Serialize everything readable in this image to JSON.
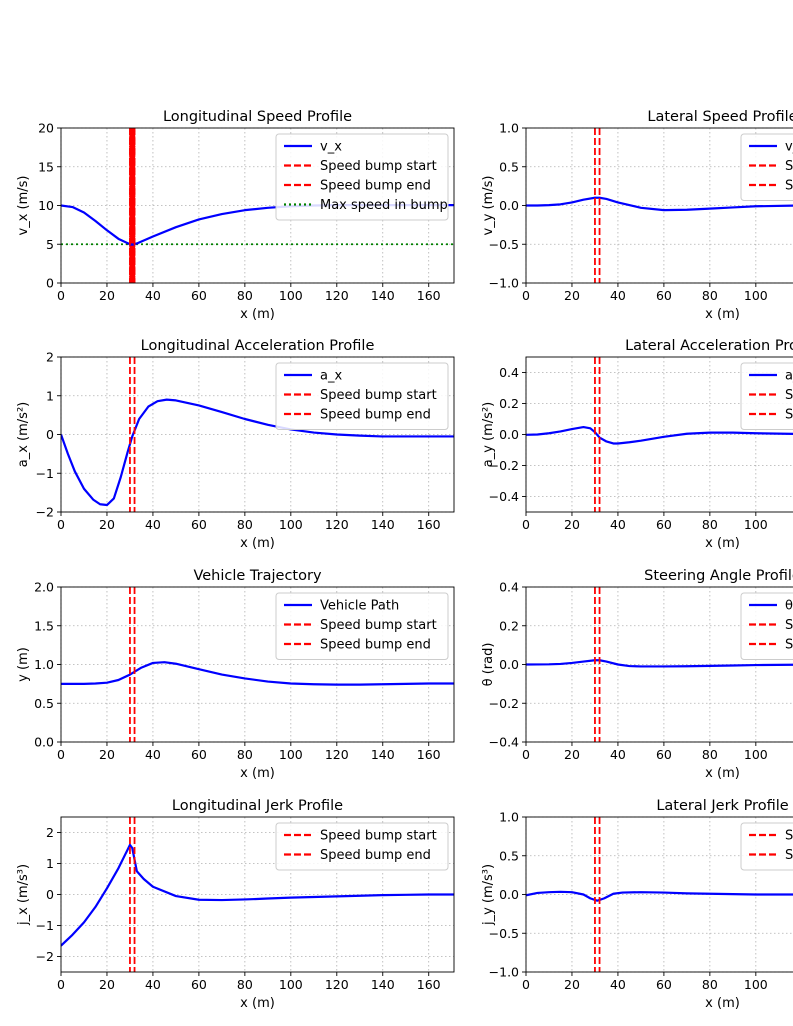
{
  "chart_data": [
    {
      "type": "line",
      "title": "Longitudinal Speed Profile",
      "xlabel": "x (m)",
      "ylabel": "v_x (m/s)",
      "xlim": [
        0,
        171
      ],
      "ylim": [
        0,
        20
      ],
      "xticks": [
        0,
        20,
        40,
        60,
        80,
        100,
        120,
        140,
        160
      ],
      "yticks": [
        0,
        5,
        10,
        15,
        20
      ],
      "xtick_labels": [
        "0",
        "20",
        "40",
        "60",
        "80",
        "100",
        "120",
        "140",
        "160"
      ],
      "ytick_labels": [
        "0",
        "5",
        "10",
        "15",
        "20"
      ],
      "grid": true,
      "legend_position": "upper-right",
      "legend": [
        "v_x",
        "Speed bump start",
        "Speed bump end",
        "Max speed in bump"
      ],
      "series": [
        {
          "name": "v_x",
          "color": "#0000ff",
          "style": "solid",
          "x": [
            0,
            5,
            10,
            15,
            20,
            25,
            30,
            31,
            33,
            40,
            50,
            60,
            70,
            80,
            90,
            100,
            110,
            120,
            130,
            140,
            150,
            160,
            171
          ],
          "y": [
            10,
            9.8,
            9.1,
            8.0,
            6.8,
            5.7,
            5.0,
            4.95,
            5.1,
            6.0,
            7.2,
            8.2,
            8.9,
            9.4,
            9.7,
            9.9,
            10.0,
            10.05,
            10.05,
            10.05,
            10.05,
            10.05,
            10.05
          ]
        }
      ],
      "vlines": [
        {
          "name": "Speed bump start",
          "x": 30,
          "color": "#ff0000",
          "style": "dashed"
        },
        {
          "name": "Speed bump end",
          "x": 32,
          "color": "#ff0000",
          "style": "dashed"
        }
      ],
      "hlines": [
        {
          "name": "Max speed in bump",
          "y": 5,
          "color": "#008000",
          "style": "dotted"
        }
      ],
      "bump_markers": {
        "x": 31,
        "color": "#ff0000",
        "y_from": 0,
        "y_to": 20,
        "step": 0.4
      }
    },
    {
      "type": "line",
      "title": "Lateral Speed Profile",
      "xlabel": "x (m)",
      "ylabel": "v_y (m/s)",
      "xlim": [
        0,
        171
      ],
      "ylim": [
        -1.0,
        1.0
      ],
      "xticks": [
        0,
        20,
        40,
        60,
        80,
        100
      ],
      "yticks": [
        -1.0,
        -0.5,
        0.0,
        0.5,
        1.0
      ],
      "xtick_labels": [
        "0",
        "20",
        "40",
        "60",
        "80",
        "100"
      ],
      "ytick_labels": [
        "−1.0",
        "−0.5",
        "0.0",
        "0.5",
        "1.0"
      ],
      "grid": true,
      "legend_position": "upper-right",
      "legend": [
        "v_y",
        "Speed bump start",
        "Speed bump end"
      ],
      "series": [
        {
          "name": "v_y",
          "color": "#0000ff",
          "style": "solid",
          "x": [
            0,
            5,
            10,
            15,
            20,
            25,
            30,
            32,
            35,
            40,
            50,
            60,
            70,
            80,
            90,
            100,
            120,
            140,
            171
          ],
          "y": [
            0,
            0,
            0.005,
            0.015,
            0.04,
            0.075,
            0.1,
            0.1,
            0.085,
            0.04,
            -0.03,
            -0.06,
            -0.055,
            -0.04,
            -0.025,
            -0.01,
            0.0,
            0.0,
            0.0
          ]
        }
      ],
      "vlines": [
        {
          "name": "Speed bump start",
          "x": 30,
          "color": "#ff0000",
          "style": "dashed"
        },
        {
          "name": "Speed bump end",
          "x": 32,
          "color": "#ff0000",
          "style": "dashed"
        }
      ],
      "hlines": []
    },
    {
      "type": "line",
      "title": "Longitudinal Acceleration Profile",
      "xlabel": "x (m)",
      "ylabel": "a_x (m/s²)",
      "xlim": [
        0,
        171
      ],
      "ylim": [
        -2,
        2
      ],
      "xticks": [
        0,
        20,
        40,
        60,
        80,
        100,
        120,
        140,
        160
      ],
      "yticks": [
        -2,
        -1,
        0,
        1,
        2
      ],
      "xtick_labels": [
        "0",
        "20",
        "40",
        "60",
        "80",
        "100",
        "120",
        "140",
        "160"
      ],
      "ytick_labels": [
        "−2",
        "−1",
        "0",
        "1",
        "2"
      ],
      "grid": true,
      "legend_position": "upper-right",
      "legend": [
        "a_x",
        "Speed bump start",
        "Speed bump end"
      ],
      "series": [
        {
          "name": "a_x",
          "color": "#0000ff",
          "style": "solid",
          "x": [
            0,
            3,
            6,
            10,
            14,
            17,
            20,
            23,
            26,
            29,
            31,
            34,
            38,
            42,
            46,
            50,
            60,
            70,
            80,
            90,
            100,
            110,
            120,
            130,
            140,
            150,
            171
          ],
          "y": [
            0,
            -0.5,
            -0.95,
            -1.4,
            -1.68,
            -1.8,
            -1.82,
            -1.65,
            -1.1,
            -0.45,
            -0.05,
            0.4,
            0.72,
            0.86,
            0.9,
            0.88,
            0.75,
            0.58,
            0.4,
            0.25,
            0.13,
            0.05,
            0.0,
            -0.03,
            -0.05,
            -0.05,
            -0.05
          ]
        }
      ],
      "vlines": [
        {
          "name": "Speed bump start",
          "x": 30,
          "color": "#ff0000",
          "style": "dashed"
        },
        {
          "name": "Speed bump end",
          "x": 32,
          "color": "#ff0000",
          "style": "dashed"
        }
      ],
      "hlines": []
    },
    {
      "type": "line",
      "title": "Lateral Acceleration Profile",
      "xlabel": "x (m)",
      "ylabel": "a_y (m/s²)",
      "xlim": [
        0,
        171
      ],
      "ylim": [
        -0.5,
        0.5
      ],
      "xticks": [
        0,
        20,
        40,
        60,
        80,
        100
      ],
      "yticks": [
        -0.4,
        -0.2,
        0.0,
        0.2,
        0.4
      ],
      "xtick_labels": [
        "0",
        "20",
        "40",
        "60",
        "80",
        "100"
      ],
      "ytick_labels": [
        "−0.4",
        "−0.2",
        "0.0",
        "0.2",
        "0.4"
      ],
      "grid": true,
      "legend_position": "upper-right",
      "legend": [
        "a_y",
        "Speed bump start",
        "Speed bump end"
      ],
      "series": [
        {
          "name": "a_y",
          "color": "#0000ff",
          "style": "solid",
          "x": [
            0,
            5,
            10,
            15,
            20,
            25,
            28,
            30,
            32,
            35,
            38,
            40,
            45,
            50,
            60,
            70,
            80,
            90,
            100,
            120,
            171
          ],
          "y": [
            -0.002,
            0.0,
            0.008,
            0.02,
            0.035,
            0.048,
            0.04,
            0.015,
            -0.02,
            -0.045,
            -0.058,
            -0.058,
            -0.05,
            -0.04,
            -0.015,
            0.005,
            0.012,
            0.012,
            0.008,
            0.003,
            0.0
          ]
        }
      ],
      "vlines": [
        {
          "name": "Speed bump start",
          "x": 30,
          "color": "#ff0000",
          "style": "dashed"
        },
        {
          "name": "Speed bump end",
          "x": 32,
          "color": "#ff0000",
          "style": "dashed"
        }
      ],
      "hlines": []
    },
    {
      "type": "line",
      "title": "Vehicle Trajectory",
      "xlabel": "x (m)",
      "ylabel": "y (m)",
      "xlim": [
        0,
        171
      ],
      "ylim": [
        0.0,
        2.0
      ],
      "xticks": [
        0,
        20,
        40,
        60,
        80,
        100,
        120,
        140,
        160
      ],
      "yticks": [
        0.0,
        0.5,
        1.0,
        1.5,
        2.0
      ],
      "xtick_labels": [
        "0",
        "20",
        "40",
        "60",
        "80",
        "100",
        "120",
        "140",
        "160"
      ],
      "ytick_labels": [
        "0.0",
        "0.5",
        "1.0",
        "1.5",
        "2.0"
      ],
      "grid": true,
      "legend_position": "upper-right",
      "legend": [
        "Vehicle Path",
        "Speed bump start",
        "Speed bump end"
      ],
      "series": [
        {
          "name": "Vehicle Path",
          "color": "#0000ff",
          "style": "solid",
          "x": [
            0,
            10,
            15,
            20,
            25,
            30,
            35,
            40,
            45,
            50,
            60,
            70,
            80,
            90,
            100,
            110,
            120,
            130,
            140,
            150,
            160,
            171
          ],
          "y": [
            0.75,
            0.75,
            0.755,
            0.765,
            0.8,
            0.87,
            0.96,
            1.02,
            1.03,
            1.01,
            0.94,
            0.87,
            0.82,
            0.78,
            0.755,
            0.745,
            0.74,
            0.74,
            0.745,
            0.75,
            0.755,
            0.755
          ]
        }
      ],
      "vlines": [
        {
          "name": "Speed bump start",
          "x": 30,
          "color": "#ff0000",
          "style": "dashed"
        },
        {
          "name": "Speed bump end",
          "x": 32,
          "color": "#ff0000",
          "style": "dashed"
        }
      ],
      "hlines": []
    },
    {
      "type": "line",
      "title": "Steering Angle Profile",
      "xlabel": "x (m)",
      "ylabel": "θ (rad)",
      "xlim": [
        0,
        171
      ],
      "ylim": [
        -0.4,
        0.4
      ],
      "xticks": [
        0,
        20,
        40,
        60,
        80,
        100
      ],
      "yticks": [
        -0.4,
        -0.2,
        0.0,
        0.2,
        0.4
      ],
      "xtick_labels": [
        "0",
        "20",
        "40",
        "60",
        "80",
        "100"
      ],
      "ytick_labels": [
        "−0.4",
        "−0.2",
        "0.0",
        "0.2",
        "0.4"
      ],
      "grid": true,
      "legend_position": "upper-right",
      "legend": [
        "θ",
        "Speed bump start",
        "Speed bump end"
      ],
      "series": [
        {
          "name": "θ",
          "color": "#0000ff",
          "style": "solid",
          "x": [
            0,
            10,
            15,
            20,
            25,
            30,
            32,
            35,
            40,
            45,
            50,
            60,
            70,
            80,
            90,
            100,
            120,
            171
          ],
          "y": [
            0,
            0.001,
            0.003,
            0.008,
            0.015,
            0.022,
            0.022,
            0.015,
            0.0,
            -0.008,
            -0.01,
            -0.01,
            -0.009,
            -0.007,
            -0.005,
            -0.003,
            -0.001,
            0.0
          ]
        }
      ],
      "vlines": [
        {
          "name": "Speed bump start",
          "x": 30,
          "color": "#ff0000",
          "style": "dashed"
        },
        {
          "name": "Speed bump end",
          "x": 32,
          "color": "#ff0000",
          "style": "dashed"
        }
      ],
      "hlines": []
    },
    {
      "type": "line",
      "title": "Longitudinal Jerk Profile",
      "xlabel": "x (m)",
      "ylabel": "j_x (m/s³)",
      "xlim": [
        0,
        171
      ],
      "ylim": [
        -2.5,
        2.5
      ],
      "xticks": [
        0,
        20,
        40,
        60,
        80,
        100,
        120,
        140,
        160
      ],
      "yticks": [
        -2,
        -1,
        0,
        1,
        2
      ],
      "xtick_labels": [
        "0",
        "20",
        "40",
        "60",
        "80",
        "100",
        "120",
        "140",
        "160"
      ],
      "ytick_labels": [
        "−2",
        "−1",
        "0",
        "1",
        "2"
      ],
      "grid": true,
      "legend_position": "upper-right",
      "legend": [
        "Speed bump start",
        "Speed bump end"
      ],
      "series": [
        {
          "name": "j_x",
          "color": "#0000ff",
          "style": "solid",
          "x": [
            0,
            5,
            10,
            15,
            20,
            25,
            28,
            30,
            31,
            33,
            36,
            40,
            50,
            60,
            70,
            80,
            90,
            100,
            110,
            120,
            130,
            140,
            150,
            160,
            171
          ],
          "y": [
            -1.65,
            -1.3,
            -0.9,
            -0.4,
            0.2,
            0.85,
            1.3,
            1.6,
            1.5,
            0.75,
            0.5,
            0.25,
            -0.05,
            -0.17,
            -0.18,
            -0.16,
            -0.13,
            -0.1,
            -0.08,
            -0.06,
            -0.04,
            -0.02,
            -0.01,
            0.0,
            0.0
          ]
        }
      ],
      "vlines": [
        {
          "name": "Speed bump start",
          "x": 30,
          "color": "#ff0000",
          "style": "dashed"
        },
        {
          "name": "Speed bump end",
          "x": 32,
          "color": "#ff0000",
          "style": "dashed"
        }
      ],
      "hlines": []
    },
    {
      "type": "line",
      "title": "Lateral Jerk Profile",
      "xlabel": "x (m)",
      "ylabel": "j_y (m/s³)",
      "xlim": [
        0,
        171
      ],
      "ylim": [
        -1.0,
        1.0
      ],
      "xticks": [
        0,
        20,
        40,
        60,
        80,
        100
      ],
      "yticks": [
        -1.0,
        -0.5,
        0.0,
        0.5,
        1.0
      ],
      "xtick_labels": [
        "0",
        "20",
        "40",
        "60",
        "80",
        "100"
      ],
      "ytick_labels": [
        "−1.0",
        "−0.5",
        "0.0",
        "0.5",
        "1.0"
      ],
      "grid": true,
      "legend_position": "upper-right",
      "legend": [
        "Speed bump start",
        "Speed bump end"
      ],
      "series": [
        {
          "name": "j_y",
          "color": "#0000ff",
          "style": "solid",
          "x": [
            0,
            5,
            10,
            15,
            20,
            25,
            28,
            31,
            34,
            38,
            42,
            50,
            60,
            70,
            80,
            90,
            100,
            120,
            171
          ],
          "y": [
            -0.01,
            0.02,
            0.03,
            0.035,
            0.03,
            0.0,
            -0.05,
            -0.08,
            -0.05,
            0.01,
            0.025,
            0.03,
            0.025,
            0.015,
            0.01,
            0.005,
            0.0,
            0.0,
            0.0
          ]
        }
      ],
      "vlines": [
        {
          "name": "Speed bump start",
          "x": 30,
          "color": "#ff0000",
          "style": "dashed"
        },
        {
          "name": "Speed bump end",
          "x": 32,
          "color": "#ff0000",
          "style": "dashed"
        }
      ],
      "hlines": []
    }
  ]
}
